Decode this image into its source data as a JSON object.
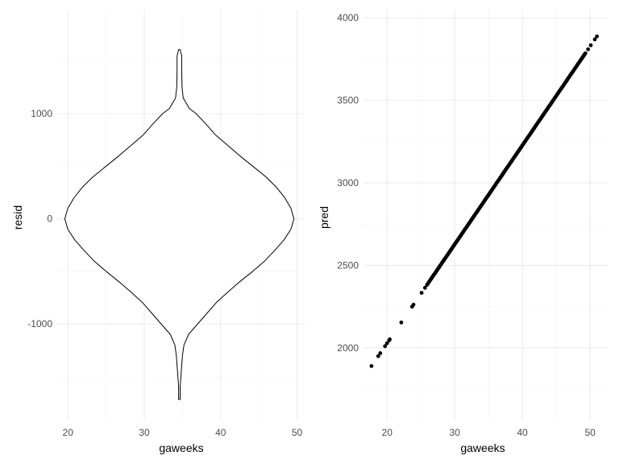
{
  "chart_data": [
    {
      "type": "violin",
      "title": "",
      "xlabel": "gaweeks",
      "ylabel": "resid",
      "xlim": [
        18.5,
        51.0
      ],
      "ylim": [
        -1920,
        1990
      ],
      "x_ticks": [
        20,
        30,
        40,
        50
      ],
      "x_tick_labels": [
        "20",
        "30",
        "40",
        "50"
      ],
      "y_ticks": [
        -1000,
        0,
        1000
      ],
      "y_tick_labels": [
        "-1000",
        "0",
        "1000"
      ],
      "grid": true,
      "theme": "minimal",
      "violin": {
        "center_x": 34.6,
        "half_widths": [
          [
            1610,
            0.1
          ],
          [
            1550,
            0.3
          ],
          [
            1400,
            0.3
          ],
          [
            1250,
            0.35
          ],
          [
            1150,
            0.5
          ],
          [
            1050,
            1.3
          ],
          [
            1000,
            2.2
          ],
          [
            900,
            3.5
          ],
          [
            800,
            4.7
          ],
          [
            700,
            6.3
          ],
          [
            600,
            7.9
          ],
          [
            500,
            9.6
          ],
          [
            400,
            11.3
          ],
          [
            300,
            12.7
          ],
          [
            200,
            13.8
          ],
          [
            100,
            14.6
          ],
          [
            0,
            15.0
          ],
          [
            -100,
            14.6
          ],
          [
            -200,
            13.7
          ],
          [
            -300,
            12.5
          ],
          [
            -400,
            11.2
          ],
          [
            -500,
            9.6
          ],
          [
            -600,
            7.9
          ],
          [
            -700,
            6.3
          ],
          [
            -800,
            4.8
          ],
          [
            -900,
            3.6
          ],
          [
            -1000,
            2.4
          ],
          [
            -1100,
            1.2
          ],
          [
            -1200,
            0.6
          ],
          [
            -1300,
            0.4
          ],
          [
            -1400,
            0.3
          ],
          [
            -1500,
            0.2
          ],
          [
            -1600,
            0.1
          ],
          [
            -1720,
            0.1
          ]
        ]
      }
    },
    {
      "type": "scatter",
      "title": "",
      "xlabel": "gaweeks",
      "ylabel": "pred",
      "xlim": [
        16.4,
        52.6
      ],
      "ylim": [
        1560,
        4050
      ],
      "x_ticks": [
        20,
        30,
        40,
        50
      ],
      "x_tick_labels": [
        "20",
        "30",
        "40",
        "50"
      ],
      "y_ticks": [
        2000,
        2500,
        3000,
        3500,
        4000
      ],
      "y_tick_labels": [
        "2000",
        "2500",
        "3000",
        "3500",
        "4000"
      ],
      "grid": true,
      "theme": "minimal",
      "point_color": "#000000",
      "isolated_x": [
        17.7,
        18.7,
        19.0,
        19.7,
        20.0,
        20.3,
        20.4,
        22.1,
        23.7,
        23.9,
        25.1,
        25.6,
        49.7,
        50.1,
        50.7,
        51.0
      ],
      "dense_range": [
        25.9,
        49.4
      ],
      "fit": {
        "intercept": 828,
        "slope": 60
      }
    }
  ]
}
